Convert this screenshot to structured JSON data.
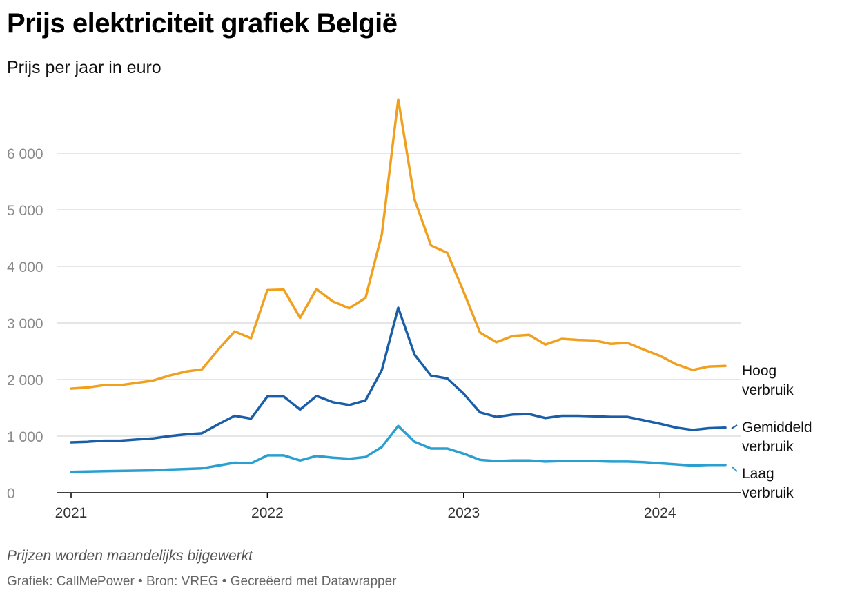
{
  "header": {
    "title": "Prijs elektriciteit grafiek België",
    "subtitle": "Prijs per jaar in euro"
  },
  "footer": {
    "note": "Prijzen worden maandelijks bijgewerkt",
    "credits": "Grafiek: CallMePower • Bron: VREG • Gecreëerd met Datawrapper"
  },
  "colors": {
    "hoog": "#f0a01e",
    "gemiddeld": "#1a5ea8",
    "laag": "#2a9fd0",
    "grid": "#dddddd",
    "axis": "#000000"
  },
  "chart_data": {
    "type": "line",
    "title": "Prijs elektriciteit grafiek België",
    "subtitle": "Prijs per jaar in euro",
    "ylim": [
      0,
      7000
    ],
    "yticks": [
      0,
      1000,
      2000,
      3000,
      4000,
      5000,
      6000
    ],
    "ytick_labels": [
      "0",
      "1 000",
      "2 000",
      "3 000",
      "4 000",
      "5 000",
      "6 000"
    ],
    "xticks": [
      "2021-01",
      "2022-01",
      "2023-01",
      "2024-01"
    ],
    "xtick_labels": [
      "2021",
      "2022",
      "2023",
      "2024"
    ],
    "grid": true,
    "x": [
      "2021-01",
      "2021-02",
      "2021-03",
      "2021-04",
      "2021-05",
      "2021-06",
      "2021-07",
      "2021-08",
      "2021-09",
      "2021-10",
      "2021-11",
      "2021-12",
      "2022-01",
      "2022-02",
      "2022-03",
      "2022-04",
      "2022-05",
      "2022-06",
      "2022-07",
      "2022-08",
      "2022-09",
      "2022-10",
      "2022-11",
      "2022-12",
      "2023-01",
      "2023-02",
      "2023-03",
      "2023-04",
      "2023-05",
      "2023-06",
      "2023-07",
      "2023-08",
      "2023-09",
      "2023-10",
      "2023-11",
      "2023-12",
      "2024-01",
      "2024-02",
      "2024-03",
      "2024-04",
      "2024-05"
    ],
    "series": [
      {
        "key": "hoog",
        "name": "Hoog verbruik",
        "label_lines": [
          "Hoog",
          "verbruik"
        ],
        "values": [
          1840,
          1860,
          1900,
          1900,
          1940,
          1980,
          2070,
          2140,
          2180,
          2530,
          2850,
          2730,
          3580,
          3590,
          3090,
          3600,
          3380,
          3260,
          3440,
          4570,
          6950,
          5180,
          4370,
          4240,
          3550,
          2830,
          2660,
          2770,
          2790,
          2620,
          2720,
          2700,
          2690,
          2630,
          2650,
          2530,
          2420,
          2270,
          2170,
          2230,
          2240
        ]
      },
      {
        "key": "gemiddeld",
        "name": "Gemiddeld verbruik",
        "label_lines": [
          "Gemiddeld",
          "verbruik"
        ],
        "values": [
          890,
          900,
          920,
          920,
          940,
          960,
          1000,
          1030,
          1050,
          1210,
          1360,
          1310,
          1700,
          1700,
          1470,
          1710,
          1600,
          1550,
          1630,
          2170,
          3270,
          2440,
          2070,
          2020,
          1750,
          1420,
          1340,
          1380,
          1390,
          1320,
          1360,
          1360,
          1350,
          1340,
          1340,
          1280,
          1220,
          1150,
          1110,
          1140,
          1150
        ]
      },
      {
        "key": "laag",
        "name": "Laag verbruik",
        "label_lines": [
          "Laag",
          "verbruik"
        ],
        "values": [
          370,
          375,
          380,
          385,
          390,
          395,
          410,
          420,
          430,
          480,
          530,
          520,
          660,
          660,
          570,
          650,
          620,
          600,
          630,
          810,
          1180,
          900,
          780,
          780,
          690,
          580,
          560,
          570,
          570,
          550,
          560,
          560,
          560,
          550,
          550,
          540,
          520,
          500,
          480,
          490,
          490
        ]
      }
    ]
  }
}
